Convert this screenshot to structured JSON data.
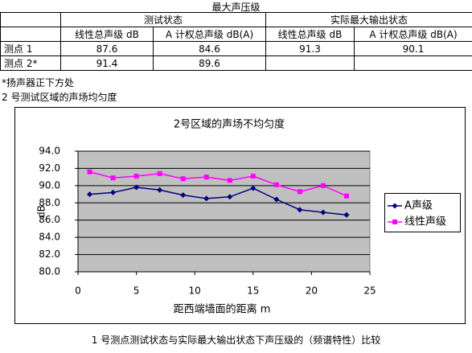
{
  "title": "最大声压级",
  "table": {
    "group_headers": [
      "测试状态",
      "实际最大输出状态"
    ],
    "headers": [
      "线性总声级 dB",
      "A 计权总声级 dB(A)",
      "线性总声级 dB",
      "A 计权总声级 dB(A)"
    ],
    "rows": [
      [
        "测点 1",
        "87.6",
        "84.6",
        "91.3",
        "90.1"
      ],
      [
        "测点 2*",
        "91.4",
        "89.6"
      ]
    ]
  },
  "notes": [
    "*扬声器正下方处",
    "2 号测试区域的声场均匀度"
  ],
  "chart_data": {
    "type": "line",
    "title": "2号区域的声场不均匀度",
    "x_label": "距西端墙面的距离 m",
    "y_label": "dB",
    "x": [
      1,
      3,
      5,
      7,
      9,
      11,
      13,
      15,
      17,
      19,
      21,
      23
    ],
    "series": [
      {
        "name": "A声级",
        "color": "#000080",
        "marker": "diamond",
        "values": [
          89.0,
          89.2,
          89.8,
          89.5,
          88.9,
          88.5,
          88.7,
          89.7,
          88.4,
          87.2,
          86.9,
          86.6
        ]
      },
      {
        "name": "线性声级",
        "color": "#ff00ff",
        "marker": "square",
        "values": [
          91.6,
          90.9,
          91.1,
          91.4,
          90.8,
          91.0,
          90.6,
          91.1,
          90.1,
          89.3,
          90.0,
          88.8
        ]
      }
    ],
    "xlim": [
      0,
      25
    ],
    "xticks": [
      0,
      5,
      10,
      15,
      20,
      25
    ],
    "ylim": [
      80,
      94
    ],
    "yticks": [
      {
        "value": 80,
        "label": "80.0"
      },
      {
        "value": 82,
        "label": "82.0"
      },
      {
        "value": 84,
        "label": "84.0"
      },
      {
        "value": 86,
        "label": "86.0"
      },
      {
        "value": 88,
        "label": "88.0"
      },
      {
        "value": 90,
        "label": "90.0"
      },
      {
        "value": 92,
        "label": "92.0"
      },
      {
        "value": 94,
        "label": "94.0"
      }
    ],
    "grid": true,
    "legend": "right"
  },
  "caption": "1 号测点测试状态与实际最大输出状态下声压级的（频谱特性）比较"
}
